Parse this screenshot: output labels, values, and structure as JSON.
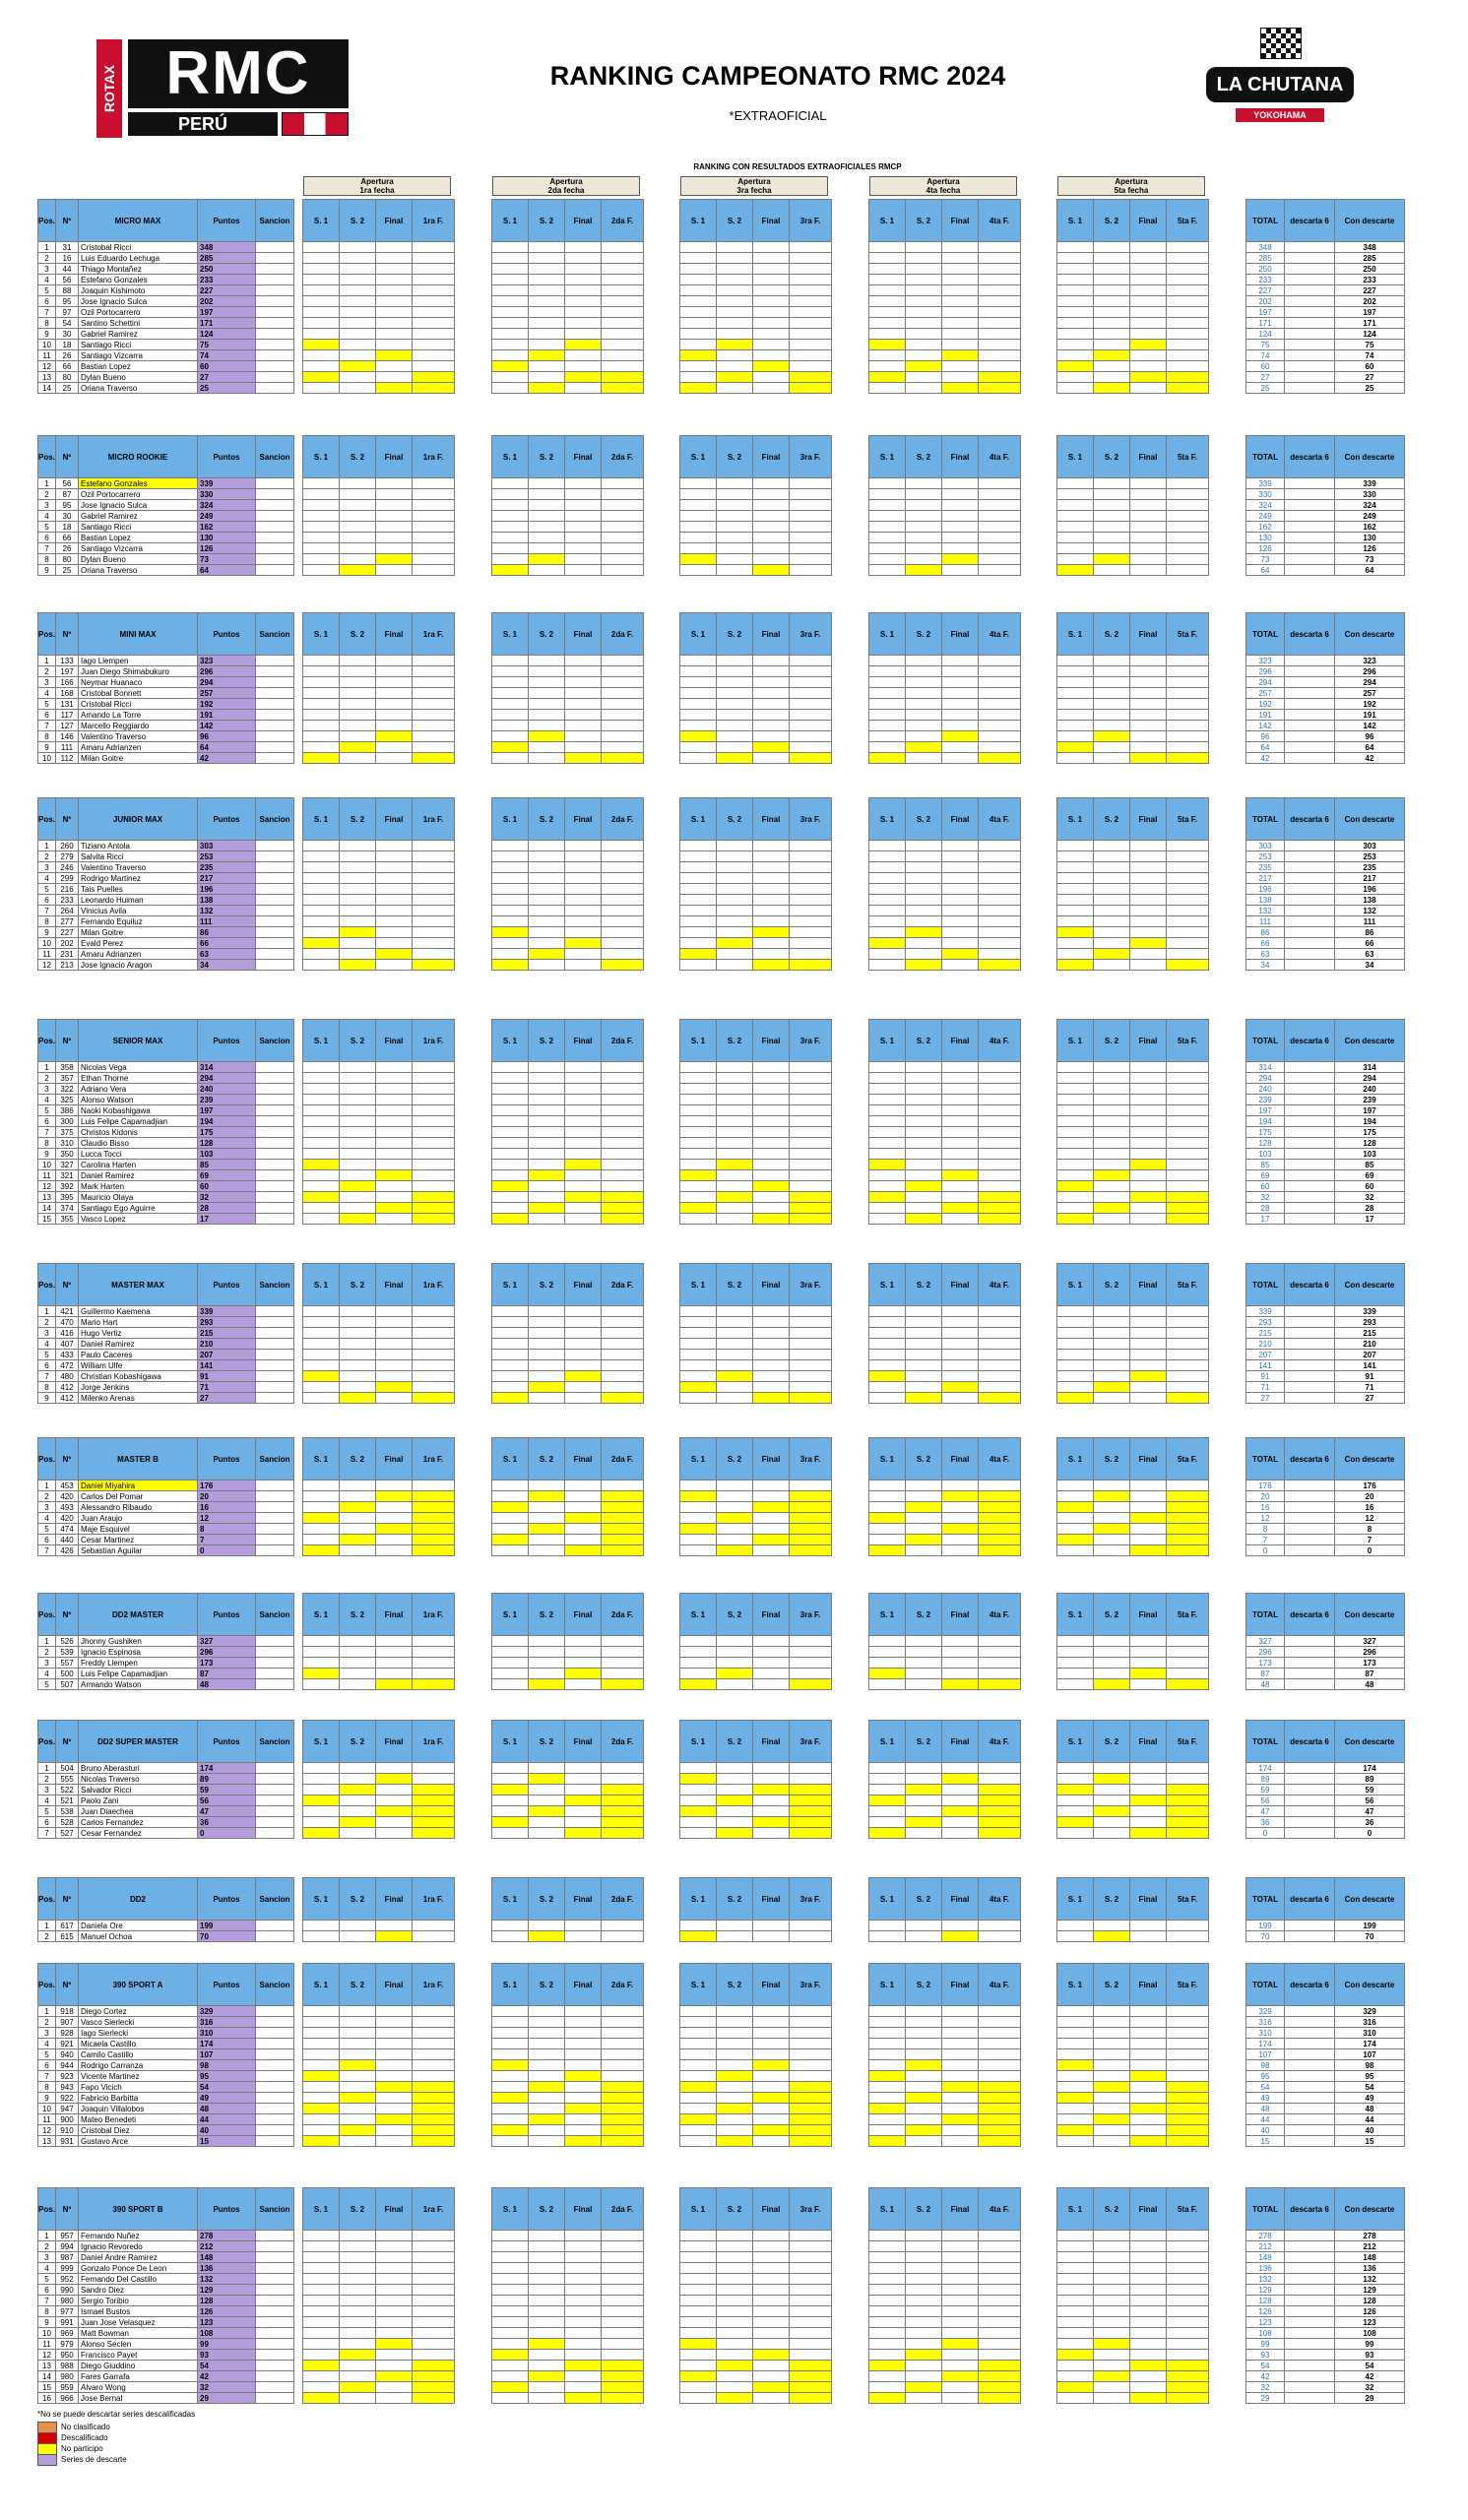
{
  "header": {
    "title": "RANKING CAMPEONATO RMC 2024",
    "subtitle": "*EXTRAOFICIAL",
    "caption": "RANKING CON RESULTADOS EXTRAOFICIALES RMCP",
    "logo_left": {
      "rotax": "ROTAX",
      "rmc": "RMC",
      "peru": "PERÚ"
    },
    "logo_right": {
      "name": "LA CHUTANA",
      "brand": "YOKOHAMA"
    }
  },
  "fechas": [
    {
      "top": "Apertura",
      "sub": "1ra fecha"
    },
    {
      "top": "Apertura",
      "sub": "2da fecha"
    },
    {
      "top": "Apertura",
      "sub": "3ra fecha"
    },
    {
      "top": "Apertura",
      "sub": "4ta fecha"
    },
    {
      "top": "Apertura",
      "sub": "5ta fecha"
    }
  ],
  "col_headers": {
    "pos": "Pos.",
    "no": "Nº",
    "puntos": "Puntos",
    "sancion": "Sancion",
    "s1": "S. 1",
    "s2": "S. 2",
    "final": "Final",
    "fin": [
      "1ra F.",
      "2da F.",
      "3ra F.",
      "4ta F.",
      "5ta F."
    ],
    "total": "TOTAL",
    "descarta": "descarta 6",
    "con": "Con descarte"
  },
  "colors": {
    "header_blue": "#6cb0e6",
    "yellow": "#ffff00",
    "orange": "#e8914e",
    "red": "#d50000",
    "purple": "#b39ddb",
    "total_blue": "#2e75b6"
  },
  "categories": [
    {
      "name": "MICRO MAX",
      "rows": [
        [
          1,
          31,
          "Cristobal Ricci",
          348
        ],
        [
          2,
          16,
          "Luis Eduardo Lechuga",
          285
        ],
        [
          3,
          44,
          "Thiago Montañez",
          250
        ],
        [
          4,
          56,
          "Estefano Gonzales",
          233
        ],
        [
          5,
          88,
          "Joaquin Kishimoto",
          227
        ],
        [
          6,
          95,
          "Jose Ignacio Sulca",
          202
        ],
        [
          7,
          97,
          "Ozil Portocarrero",
          197
        ],
        [
          8,
          54,
          "Santino Schettini",
          171
        ],
        [
          9,
          30,
          "Gabriel Ramirez",
          124
        ],
        [
          10,
          18,
          "Santiago Ricci",
          75
        ],
        [
          11,
          26,
          "Santiago Vizcarra",
          74
        ],
        [
          12,
          66,
          "Bastian Lopez",
          60
        ],
        [
          13,
          80,
          "Dylan Bueno",
          27
        ],
        [
          14,
          25,
          "Oriana Traverso",
          25
        ]
      ]
    },
    {
      "name": "MICRO ROOKIE",
      "rows": [
        [
          1,
          56,
          "Estefano Gonzales",
          339
        ],
        [
          2,
          87,
          "Ozil Portocarrero",
          330
        ],
        [
          3,
          95,
          "Jose Ignacio Sulca",
          324
        ],
        [
          4,
          30,
          "Gabriel Ramirez",
          249
        ],
        [
          5,
          18,
          "Santiago Ricci",
          162
        ],
        [
          6,
          66,
          "Bastian Lopez",
          130
        ],
        [
          7,
          26,
          "Santiago Vizcarra",
          126
        ],
        [
          8,
          80,
          "Dylan Bueno",
          73
        ],
        [
          9,
          25,
          "Oriana Traverso",
          64
        ]
      ]
    },
    {
      "name": "MINI MAX",
      "rows": [
        [
          1,
          133,
          "Iago Llempen",
          323
        ],
        [
          2,
          197,
          "Juan Diego Shimabukuro",
          296
        ],
        [
          3,
          166,
          "Neymar Huanaco",
          294
        ],
        [
          4,
          168,
          "Cristobal Bonnett",
          257
        ],
        [
          5,
          131,
          "Cristobal Ricci",
          192
        ],
        [
          6,
          117,
          "Amando La Torre",
          191
        ],
        [
          7,
          127,
          "Marcello Reggiardo",
          142
        ],
        [
          8,
          146,
          "Valentino Traverso",
          96
        ],
        [
          9,
          111,
          "Amaru Adrianzen",
          64
        ],
        [
          10,
          112,
          "Milan Goitre",
          42
        ]
      ]
    },
    {
      "name": "JUNIOR MAX",
      "rows": [
        [
          1,
          260,
          "Tiziano Antola",
          303
        ],
        [
          2,
          279,
          "Salvita Ricci",
          253
        ],
        [
          3,
          246,
          "Valentino Traverso",
          235
        ],
        [
          4,
          299,
          "Rodrigo Martinez",
          217
        ],
        [
          5,
          216,
          "Tais Puelles",
          196
        ],
        [
          6,
          233,
          "Leonardo Huiman",
          138
        ],
        [
          7,
          264,
          "Vinicius Avila",
          132
        ],
        [
          8,
          277,
          "Fernando Equiluz",
          111
        ],
        [
          9,
          227,
          "Milan Goitre",
          86
        ],
        [
          10,
          202,
          "Evald Perez",
          66
        ],
        [
          11,
          231,
          "Amaru Adrianzen",
          63
        ],
        [
          12,
          213,
          "Jose Ignacio Aragon",
          34
        ]
      ]
    },
    {
      "name": "SENIOR MAX",
      "rows": [
        [
          1,
          358,
          "Nicolas Vega",
          314
        ],
        [
          2,
          357,
          "Ethan Thorne",
          294
        ],
        [
          3,
          322,
          "Adriano Vera",
          240
        ],
        [
          4,
          325,
          "Alonso Watson",
          239
        ],
        [
          5,
          386,
          "Naoki Kobashigawa",
          197
        ],
        [
          6,
          300,
          "Luis Felipe Capamadjian",
          194
        ],
        [
          7,
          375,
          "Christos Kidonis",
          175
        ],
        [
          8,
          310,
          "Claudio Bisso",
          128
        ],
        [
          9,
          350,
          "Lucca Tocci",
          103
        ],
        [
          10,
          327,
          "Carolina Harten",
          85
        ],
        [
          11,
          321,
          "Daniel Ramirez",
          69
        ],
        [
          12,
          392,
          "Mark Harten",
          60
        ],
        [
          13,
          395,
          "Mauricio Olaya",
          32
        ],
        [
          14,
          374,
          "Santiago Ego Aguirre",
          28
        ],
        [
          15,
          355,
          "Vasco Lopez",
          17
        ]
      ]
    },
    {
      "name": "MASTER MAX",
      "rows": [
        [
          1,
          421,
          "Guillermo Kaemena",
          339
        ],
        [
          2,
          470,
          "Mario Hart",
          293
        ],
        [
          3,
          416,
          "Hugo Vertiz",
          215
        ],
        [
          4,
          407,
          "Daniel Ramirez",
          210
        ],
        [
          5,
          433,
          "Paulo Caceres",
          207
        ],
        [
          6,
          472,
          "William Ulfe",
          141
        ],
        [
          7,
          480,
          "Christian Kobashigawa",
          91
        ],
        [
          8,
          412,
          "Jorge Jenkins",
          71
        ],
        [
          9,
          412,
          "Milenko Arenas",
          27
        ]
      ]
    },
    {
      "name": "MASTER B",
      "rows": [
        [
          1,
          453,
          "Daniel Miyahira",
          176
        ],
        [
          2,
          420,
          "Carlos Del Pomar",
          20
        ],
        [
          3,
          493,
          "Alessandro Ribaudo",
          16
        ],
        [
          4,
          420,
          "Juan Araujo",
          12
        ],
        [
          5,
          474,
          "Maje Esquivel",
          8
        ],
        [
          6,
          440,
          "Cesar Martinez",
          7
        ],
        [
          7,
          426,
          "Sebastian Aguilar",
          0
        ]
      ]
    },
    {
      "name": "DD2 MASTER",
      "rows": [
        [
          1,
          526,
          "Jhonny Gushiken",
          327
        ],
        [
          2,
          539,
          "Ignacio Espinosa",
          296
        ],
        [
          3,
          557,
          "Freddy Llempen",
          173
        ],
        [
          4,
          500,
          "Luis Felipe Capamadjian",
          87
        ],
        [
          5,
          507,
          "Armando Watson",
          48
        ]
      ]
    },
    {
      "name": "DD2 SUPER MASTER",
      "rows": [
        [
          1,
          504,
          "Bruno Aberasturi",
          174
        ],
        [
          2,
          555,
          "Nicolas Traverso",
          89
        ],
        [
          3,
          522,
          "Salvador Ricci",
          59
        ],
        [
          4,
          521,
          "Paolo Zani",
          56
        ],
        [
          5,
          538,
          "Juan Diaechea",
          47
        ],
        [
          6,
          528,
          "Carlos Fernandez",
          36
        ],
        [
          7,
          527,
          "Cesar Fernandez",
          0
        ]
      ]
    },
    {
      "name": "DD2",
      "rows": [
        [
          1,
          617,
          "Daniela Ore",
          199
        ],
        [
          2,
          615,
          "Manuel Ochoa",
          70
        ]
      ]
    },
    {
      "name": "390 SPORT A",
      "rows": [
        [
          1,
          918,
          "Diego Cortez",
          329
        ],
        [
          2,
          907,
          "Vasco Sierlecki",
          316
        ],
        [
          3,
          928,
          "Iago Sierlecki",
          310
        ],
        [
          4,
          921,
          "Micaela Castillo",
          174
        ],
        [
          5,
          940,
          "Camilo Castillo",
          107
        ],
        [
          6,
          944,
          "Rodrigo Carranza",
          98
        ],
        [
          7,
          923,
          "Vicente Martinez",
          95
        ],
        [
          8,
          943,
          "Fapo Vicich",
          54
        ],
        [
          9,
          922,
          "Fabricio Barbitta",
          49
        ],
        [
          10,
          947,
          "Joaquin Villalobos",
          48
        ],
        [
          11,
          900,
          "Mateo Benedeti",
          44
        ],
        [
          12,
          910,
          "Cristobal Diez",
          40
        ],
        [
          13,
          931,
          "Gustavo Arce",
          15
        ]
      ]
    },
    {
      "name": "390 SPORT B",
      "rows": [
        [
          1,
          957,
          "Fernando Nuñez",
          278
        ],
        [
          2,
          994,
          "Ignacio Revoredo",
          212
        ],
        [
          3,
          987,
          "Daniel Andre Ramirez",
          148
        ],
        [
          4,
          999,
          "Gonzalo Ponce De Leon",
          136
        ],
        [
          5,
          952,
          "Fernando Del Castillo",
          132
        ],
        [
          6,
          990,
          "Sandro Diez",
          129
        ],
        [
          7,
          980,
          "Sergio Toribio",
          128
        ],
        [
          8,
          977,
          "Ismael Bustos",
          126
        ],
        [
          9,
          991,
          "Juan Jose Velasquez",
          123
        ],
        [
          10,
          969,
          "Matt Bowman",
          108
        ],
        [
          11,
          979,
          "Alonso Seclen",
          99
        ],
        [
          12,
          950,
          "Francisco Payet",
          93
        ],
        [
          13,
          988,
          "Diego Giuddino",
          54
        ],
        [
          14,
          980,
          "Fares Garrafa",
          42
        ],
        [
          15,
          959,
          "Alvaro Wong",
          32
        ],
        [
          16,
          966,
          "Jose Bernal",
          29
        ]
      ]
    }
  ],
  "legend": {
    "note": "*No se puede descartar series descalificadas",
    "items": [
      {
        "label": "No clasificado",
        "color": "#e8914e"
      },
      {
        "label": "Descalificado",
        "color": "#d50000"
      },
      {
        "label": "No participo",
        "color": "#ffff00"
      },
      {
        "label": "Series de descarte",
        "color": "#b39ddb"
      }
    ]
  }
}
